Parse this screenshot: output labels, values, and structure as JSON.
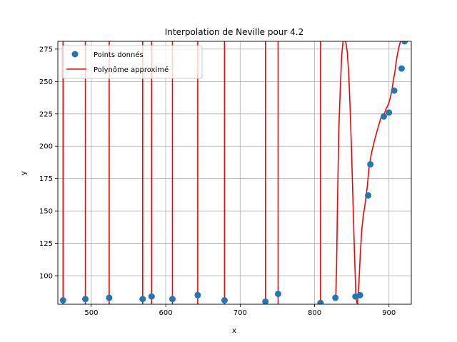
{
  "chart_data": {
    "type": "scatter",
    "title": "Interpolation de Neville pour 4.2",
    "xlabel": "x",
    "ylabel": "y",
    "xlim": [
      455,
      930
    ],
    "ylim": [
      78,
      281
    ],
    "xticks": [
      500,
      600,
      700,
      800,
      900
    ],
    "yticks": [
      100,
      125,
      150,
      175,
      200,
      225,
      250,
      275
    ],
    "grid": true,
    "legend_position": "top-left",
    "colors": {
      "points": "#1f77b4",
      "curve": "#ff0000"
    },
    "series": [
      {
        "name": "Points donnés",
        "kind": "scatter",
        "x": [
          462,
          492,
          524,
          569,
          581,
          609,
          643,
          679,
          734,
          751,
          808,
          828,
          855,
          861,
          872,
          875,
          893,
          900,
          907,
          917,
          921
        ],
        "y": [
          81,
          82,
          83,
          82,
          84,
          82,
          85,
          81,
          80,
          86,
          79,
          83,
          84,
          85,
          162,
          186,
          223,
          226,
          243,
          260,
          281
        ]
      },
      {
        "name": "Polynôme approximé",
        "kind": "line",
        "x": [
          828.6,
          829.6,
          830.6,
          832.5,
          834.5,
          836.4,
          838.3,
          840.3,
          842.2,
          844.1,
          846.0,
          848.0,
          849.9,
          851.8,
          853.8,
          855.7,
          857.6,
          859.6,
          861.5,
          863.4,
          865.3,
          867.3,
          869.2,
          871.1,
          873.1,
          875.0,
          876.9,
          878.8,
          880.8,
          882.7,
          884.6,
          886.6,
          888.5,
          890.4,
          892.4,
          894.3,
          896.2,
          898.1,
          900.1,
          902.0,
          903.9,
          905.9,
          907.8,
          909.7,
          911.7,
          913.6,
          915.5
        ],
        "y": [
          84,
          108,
          148,
          211,
          244,
          270,
          281,
          282,
          280,
          272,
          254,
          227,
          193,
          154,
          114,
          82,
          78,
          94,
          117,
          135,
          146,
          153,
          161,
          170,
          183,
          190,
          196,
          200,
          205,
          209,
          213,
          217,
          221,
          223,
          224,
          226,
          229,
          231,
          234,
          238,
          243,
          251,
          257,
          265,
          272,
          277,
          281
        ]
      }
    ],
    "vertical_segments_x": [
      462,
      492,
      524,
      569,
      581,
      609,
      643,
      679,
      734,
      751,
      808
    ]
  }
}
